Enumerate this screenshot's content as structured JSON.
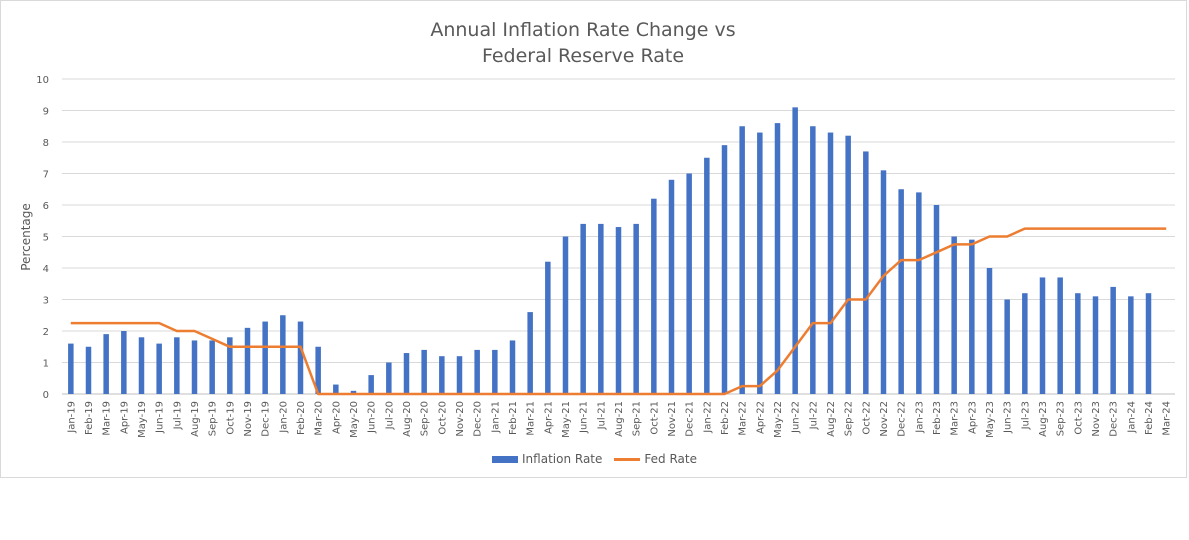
{
  "chart_data": {
    "type": "bar",
    "title_line1": "Annual Inflation Rate Change vs",
    "title_line2": "Federal Reserve Rate",
    "ylabel": "Percentage",
    "xlabel": "",
    "ylim": [
      0,
      10
    ],
    "yticks": [
      0,
      1,
      2,
      3,
      4,
      5,
      6,
      7,
      8,
      9,
      10
    ],
    "grid": true,
    "legend_position": "bottom",
    "categories": [
      "Jan-19",
      "Feb-19",
      "Mar-19",
      "Apr-19",
      "May-19",
      "Jun-19",
      "Jul-19",
      "Aug-19",
      "Sep-19",
      "Oct-19",
      "Nov-19",
      "Dec-19",
      "Jan-20",
      "Feb-20",
      "Mar-20",
      "Apr-20",
      "May-20",
      "Jun-20",
      "Jul-20",
      "Aug-20",
      "Sep-20",
      "Oct-20",
      "Nov-20",
      "Dec-20",
      "Jan-21",
      "Feb-21",
      "Mar-21",
      "Apr-21",
      "May-21",
      "Jun-21",
      "Jul-21",
      "Aug-21",
      "Sep-21",
      "Oct-21",
      "Nov-21",
      "Dec-21",
      "Jan-22",
      "Feb-22",
      "Mar-22",
      "Apr-22",
      "May-22",
      "Jun-22",
      "Jul-22",
      "Aug-22",
      "Sep-22",
      "Oct-22",
      "Nov-22",
      "Dec-22",
      "Jan-23",
      "Feb-23",
      "Mar-23",
      "Apr-23",
      "May-23",
      "Jun-23",
      "Jul-23",
      "Aug-23",
      "Sep-23",
      "Oct-23",
      "Nov-23",
      "Dec-23",
      "Jan-24",
      "Feb-24",
      "Mar-24"
    ],
    "series": [
      {
        "name": "Inflation Rate",
        "kind": "bar",
        "color": "#4472c4",
        "values": [
          1.6,
          1.5,
          1.9,
          2.0,
          1.8,
          1.6,
          1.8,
          1.7,
          1.7,
          1.8,
          2.1,
          2.3,
          2.5,
          2.3,
          1.5,
          0.3,
          0.1,
          0.6,
          1.0,
          1.3,
          1.4,
          1.2,
          1.2,
          1.4,
          1.4,
          1.7,
          2.6,
          4.2,
          5.0,
          5.4,
          5.4,
          5.3,
          5.4,
          6.2,
          6.8,
          7.0,
          7.5,
          7.9,
          8.5,
          8.3,
          8.6,
          9.1,
          8.5,
          8.3,
          8.2,
          7.7,
          7.1,
          6.5,
          6.4,
          6.0,
          5.0,
          4.9,
          4.0,
          3.0,
          3.2,
          3.7,
          3.7,
          3.2,
          3.1,
          3.4,
          3.1,
          3.2,
          null
        ]
      },
      {
        "name": "Fed Rate",
        "kind": "line",
        "color": "#ed7d31",
        "values": [
          2.25,
          2.25,
          2.25,
          2.25,
          2.25,
          2.25,
          2.0,
          2.0,
          1.75,
          1.5,
          1.5,
          1.5,
          1.5,
          1.5,
          0.0,
          0.0,
          0.0,
          0.0,
          0.0,
          0.0,
          0.0,
          0.0,
          0.0,
          0.0,
          0.0,
          0.0,
          0.0,
          0.0,
          0.0,
          0.0,
          0.0,
          0.0,
          0.0,
          0.0,
          0.0,
          0.0,
          0.0,
          0.0,
          0.25,
          0.25,
          0.75,
          1.5,
          2.25,
          2.25,
          3.0,
          3.0,
          3.75,
          4.25,
          4.25,
          4.5,
          4.75,
          4.75,
          5.0,
          5.0,
          5.25,
          5.25,
          5.25,
          5.25,
          5.25,
          5.25,
          5.25,
          5.25,
          5.25
        ]
      }
    ]
  }
}
